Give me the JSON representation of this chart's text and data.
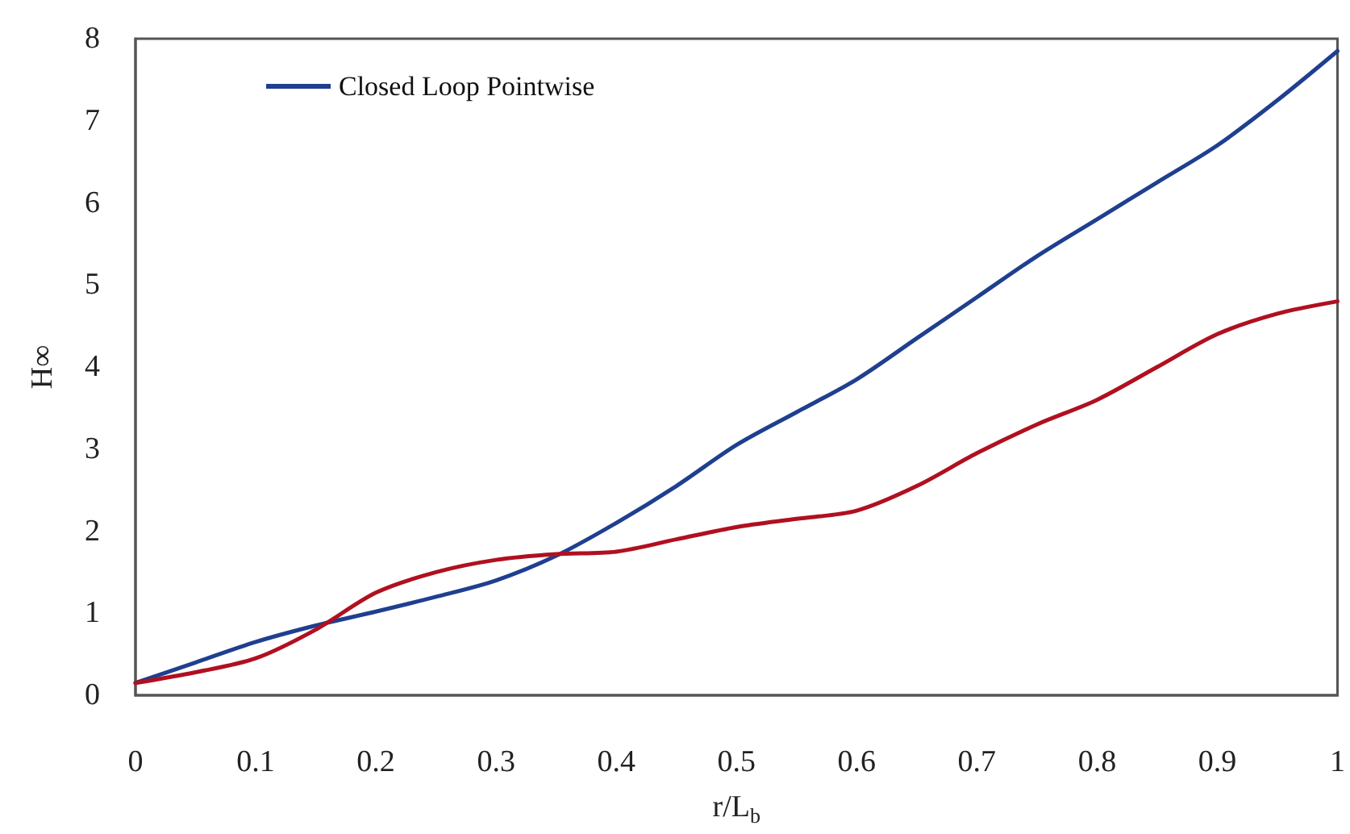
{
  "chart_data": {
    "type": "line",
    "xlabel": "r/L$_{b}$",
    "ylabel": "H∞",
    "x": [
      0,
      0.05,
      0.1,
      0.15,
      0.2,
      0.25,
      0.3,
      0.35,
      0.4,
      0.45,
      0.5,
      0.55,
      0.6,
      0.65,
      0.7,
      0.75,
      0.8,
      0.85,
      0.9,
      0.95,
      1.0
    ],
    "series": [
      {
        "name": "Closed Loop Pointwise",
        "color": "#1f3f8f",
        "values": [
          0.15,
          0.4,
          0.65,
          0.85,
          1.02,
          1.2,
          1.4,
          1.7,
          2.1,
          2.55,
          3.05,
          3.45,
          3.85,
          4.35,
          4.85,
          5.35,
          5.8,
          6.25,
          6.7,
          7.25,
          7.85
        ]
      },
      {
        "color": "#b01020",
        "values": [
          0.15,
          0.28,
          0.45,
          0.8,
          1.25,
          1.5,
          1.65,
          1.72,
          1.75,
          1.9,
          2.05,
          2.15,
          2.25,
          2.55,
          2.95,
          3.3,
          3.6,
          4.0,
          4.4,
          4.65,
          4.8
        ]
      }
    ],
    "xlim": [
      0,
      1
    ],
    "xticks": [
      0,
      0.1,
      0.2,
      0.3,
      0.4,
      0.5,
      0.6,
      0.7,
      0.8,
      0.9,
      1
    ],
    "ylim": [
      0,
      8
    ],
    "yticks": [
      0,
      1,
      2,
      3,
      4,
      5,
      6,
      7,
      8
    ],
    "grid": false,
    "legend": "top left",
    "marker": "none",
    "line_style": "solid"
  }
}
